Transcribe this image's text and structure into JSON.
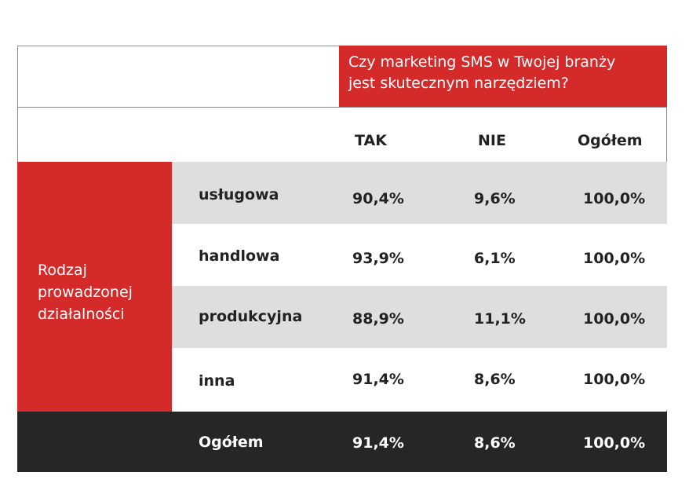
{
  "chart_data": {
    "type": "table",
    "title": "Czy marketing SMS w Twojej branży jest skutecznym narzędziem?",
    "row_group_label": "Rodzaj prowadzonej działalności",
    "columns": [
      "TAK",
      "NIE",
      "Ogółem"
    ],
    "rows": [
      {
        "category": "usługowa",
        "values": [
          "90,4%",
          "9,6%",
          "100,0%"
        ]
      },
      {
        "category": "handlowa",
        "values": [
          "93,9%",
          "6,1%",
          "100,0%"
        ]
      },
      {
        "category": "produkcyjna",
        "values": [
          "88,9%",
          "11,1%",
          "100,0%"
        ]
      },
      {
        "category": "inna",
        "values": [
          "91,4%",
          "8,6%",
          "100,0%"
        ]
      }
    ],
    "total": {
      "category": "Ogółem",
      "values": [
        "91,4%",
        "8,6%",
        "100,0%"
      ]
    }
  },
  "title_lines": [
    "Czy marketing SMS w Twojej branży",
    "jest skutecznym narzędziem?"
  ],
  "row_group_lines": [
    "Rodzaj",
    "prowadzonej",
    "działalności"
  ],
  "colors": {
    "accent_red": "#d42a2a",
    "row_grey": "#dedede",
    "total_dark": "#262626"
  }
}
